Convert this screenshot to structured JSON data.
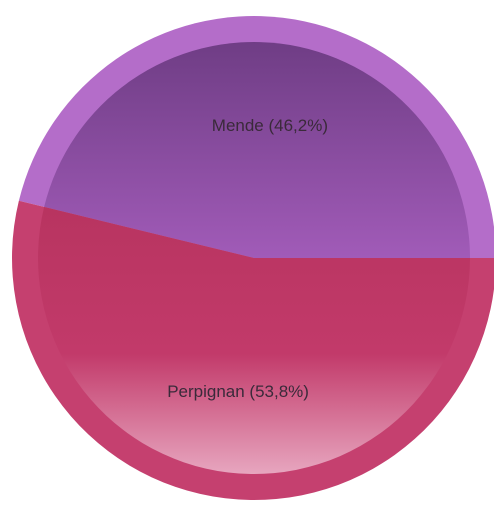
{
  "chart_data": {
    "type": "pie",
    "slices": [
      {
        "label": "Mende (46,2%)",
        "name": "Mende",
        "value": 46.2,
        "base_color": "#a15bb8",
        "rim_color": "#b46dc9",
        "dark_color": "#6f3d85"
      },
      {
        "label": "Perpignan (53,8%)",
        "name": "Perpignan",
        "value": 53.8,
        "base_color": "#c23a6a",
        "rim_color": "#c5406f",
        "dark_color": "#b83460",
        "light_color": "#e7a6bf"
      }
    ],
    "title": "",
    "legend": "none"
  }
}
